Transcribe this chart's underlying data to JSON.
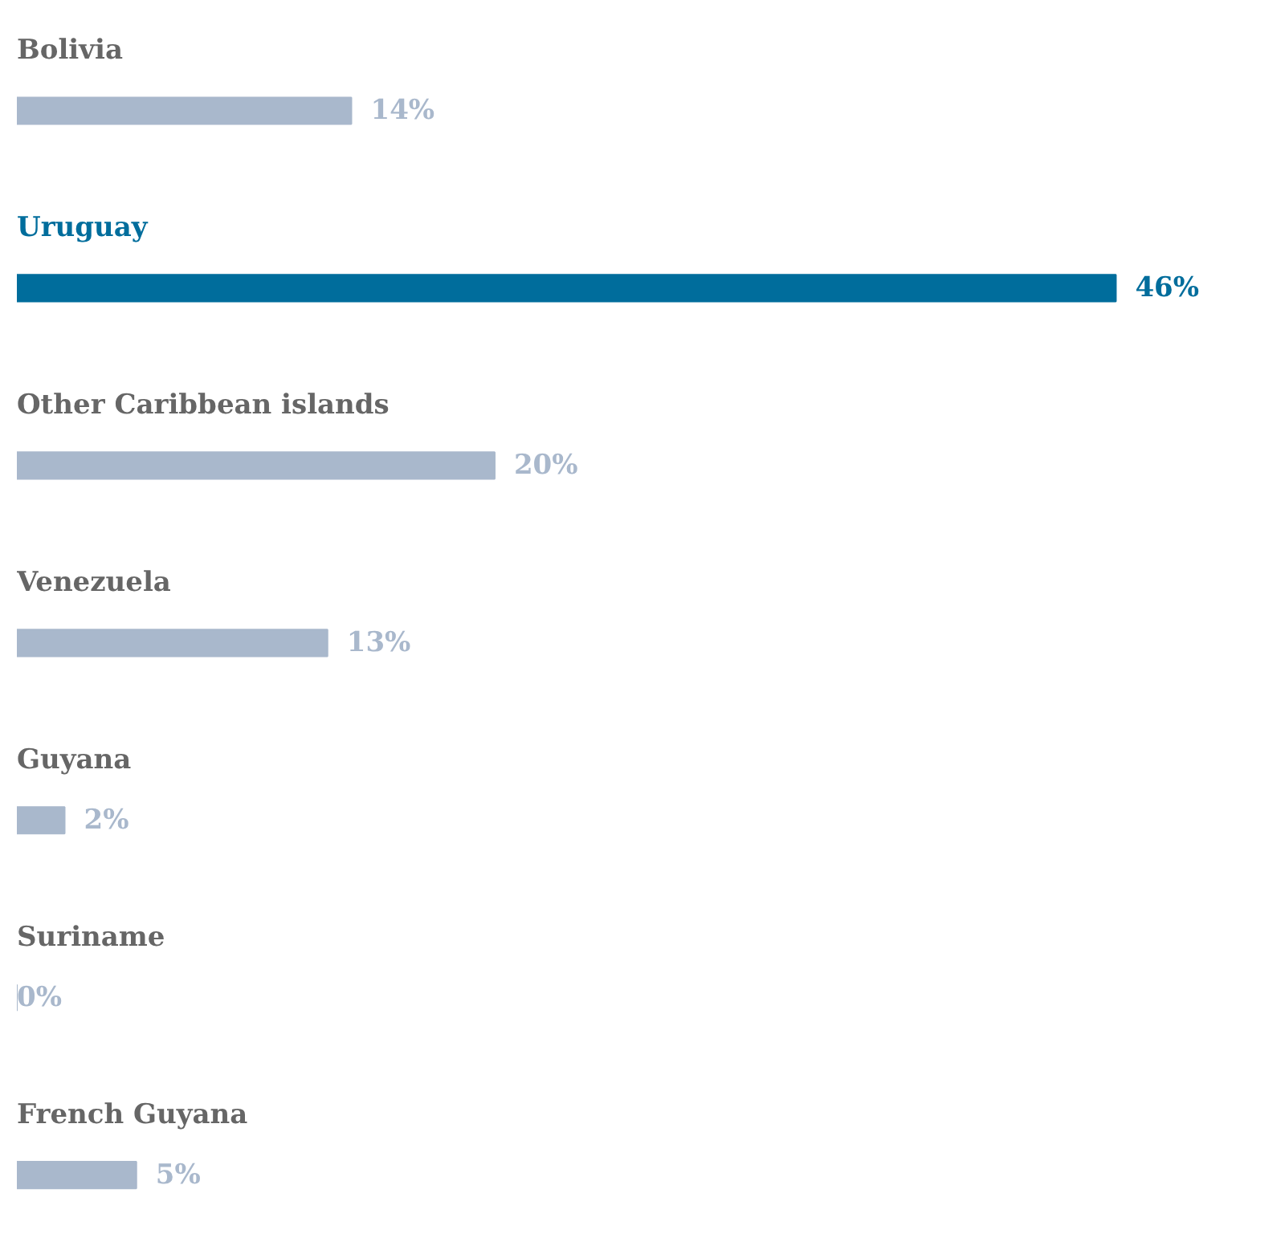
{
  "chart_data": {
    "type": "bar",
    "orientation": "horizontal",
    "categories": [
      "Bolivia",
      "Uruguay",
      "Other Caribbean islands",
      "Venezuela",
      "Guyana",
      "Suriname",
      "French Guyana"
    ],
    "values": [
      14,
      46,
      20,
      13,
      2,
      0,
      5
    ],
    "colors": [
      "#a9b8cc",
      "#006d9c",
      "#a9b8cc",
      "#a9b8cc",
      "#a9b8cc",
      "#a9b8cc",
      "#a9b8cc"
    ],
    "value_labels": [
      "14%",
      "46%",
      "20%",
      "13%",
      "2%",
      "0%",
      "5%"
    ],
    "grid": false,
    "tick_labels": false
  }
}
